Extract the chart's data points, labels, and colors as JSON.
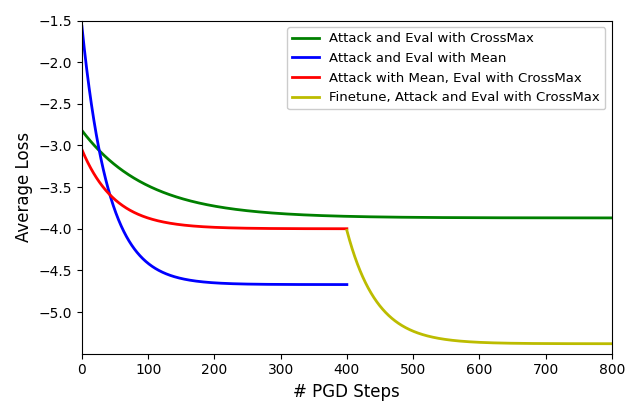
{
  "title": "",
  "xlabel": "# PGD Steps",
  "ylabel": "Average Loss",
  "xlim": [
    0,
    800
  ],
  "ylim": [
    -5.5,
    -1.5
  ],
  "yticks": [
    -5.0,
    -4.5,
    -4.0,
    -3.5,
    -3.0,
    -2.5,
    -2.0,
    -1.5
  ],
  "xticks": [
    0,
    100,
    200,
    300,
    400,
    500,
    600,
    700,
    800
  ],
  "lines": [
    {
      "label": "Attack and Eval with CrossMax",
      "color": "#008000",
      "x_start": 0,
      "x_end": 800,
      "y_start": -2.82,
      "y_end": -3.87,
      "decay": 0.01
    },
    {
      "label": "Attack and Eval with Mean",
      "color": "#0000FF",
      "x_start": 0,
      "x_end": 400,
      "y_start": -1.57,
      "y_end": -4.67,
      "decay": 0.025
    },
    {
      "label": "Attack with Mean, Eval with CrossMax",
      "color": "#FF0000",
      "x_start": 0,
      "x_end": 400,
      "y_start": -3.05,
      "y_end": -4.0,
      "decay": 0.02
    },
    {
      "label": "Finetune, Attack and Eval with CrossMax",
      "color": "#BCBC00",
      "x_start": 400,
      "x_end": 800,
      "y_start": -4.02,
      "y_end": -5.38,
      "decay": 0.022
    }
  ],
  "linewidth": 2.0,
  "legend_loc": "upper right",
  "legend_fontsize": 9.5,
  "figsize": [
    6.4,
    4.16
  ],
  "dpi": 100
}
